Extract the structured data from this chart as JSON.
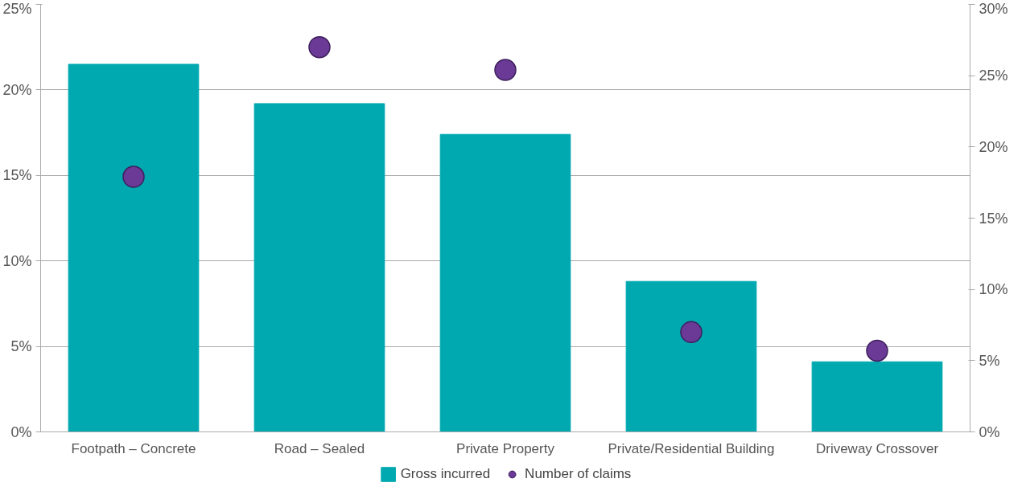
{
  "chart_data": {
    "type": "bar",
    "categories": [
      "Footpath – Concrete",
      "Road – Sealed",
      "Private Property",
      "Private/Residential Building",
      "Driveway Crossover"
    ],
    "series": [
      {
        "name": "Gross incurred",
        "color": "#00a8b0",
        "values": [
          21.5,
          19.2,
          17.4,
          8.8,
          4.1
        ]
      },
      {
        "name": "Number of claims",
        "type": "scatter",
        "axis": "y2",
        "color": "#6b3a96",
        "marker": "circle",
        "values": [
          17.9,
          27.0,
          25.4,
          7.0,
          5.7
        ]
      }
    ],
    "ylim": [
      0,
      25
    ],
    "yticks": [
      {
        "value": 0,
        "label": "0%"
      },
      {
        "value": 5,
        "label": "5%"
      },
      {
        "value": 10,
        "label": "10%"
      },
      {
        "value": 15,
        "label": "15%"
      },
      {
        "value": 20,
        "label": "20%"
      },
      {
        "value": 25,
        "label": "25%"
      }
    ],
    "y2lim": [
      0,
      30
    ],
    "y2ticks": [
      {
        "value": 0,
        "label": "0%"
      },
      {
        "value": 5,
        "label": "5%"
      },
      {
        "value": 10,
        "label": "10%"
      },
      {
        "value": 15,
        "label": "15%"
      },
      {
        "value": 20,
        "label": "20%"
      },
      {
        "value": 25,
        "label": "25%"
      },
      {
        "value": 30,
        "label": "30%"
      }
    ],
    "grid": "y",
    "legend": "bottom"
  }
}
